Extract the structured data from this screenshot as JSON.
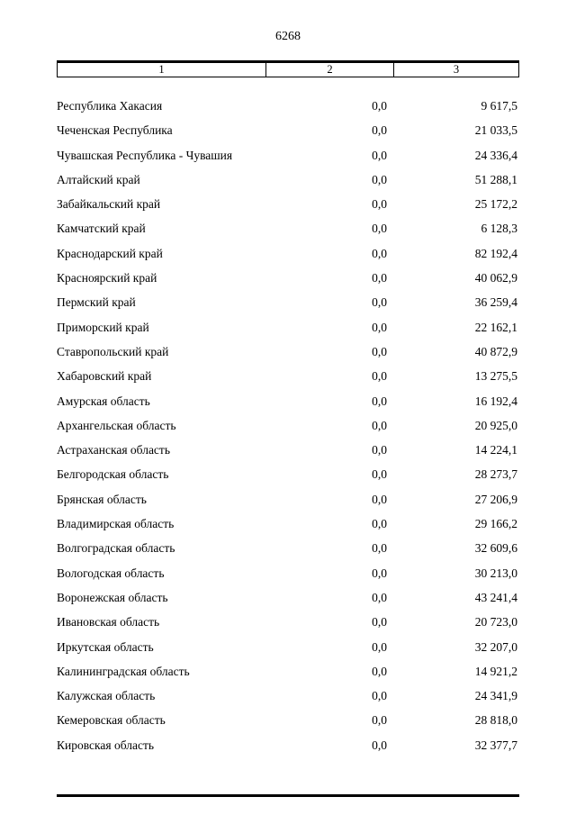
{
  "page": {
    "number": "6268"
  },
  "table": {
    "headers": [
      "1",
      "2",
      "3"
    ],
    "rows": [
      {
        "region": "Республика Хакасия",
        "col2": "0,0",
        "col3": "9 617,5"
      },
      {
        "region": "Чеченская Республика",
        "col2": "0,0",
        "col3": "21 033,5"
      },
      {
        "region": "Чувашская Республика - Чувашия",
        "col2": "0,0",
        "col3": "24 336,4"
      },
      {
        "region": "Алтайский край",
        "col2": "0,0",
        "col3": "51 288,1"
      },
      {
        "region": "Забайкальский край",
        "col2": "0,0",
        "col3": "25 172,2"
      },
      {
        "region": "Камчатский край",
        "col2": "0,0",
        "col3": "6 128,3"
      },
      {
        "region": "Краснодарский край",
        "col2": "0,0",
        "col3": "82 192,4"
      },
      {
        "region": "Красноярский край",
        "col2": "0,0",
        "col3": "40 062,9"
      },
      {
        "region": "Пермский край",
        "col2": "0,0",
        "col3": "36 259,4"
      },
      {
        "region": "Приморский край",
        "col2": "0,0",
        "col3": "22 162,1"
      },
      {
        "region": "Ставропольский край",
        "col2": "0,0",
        "col3": "40 872,9"
      },
      {
        "region": "Хабаровский край",
        "col2": "0,0",
        "col3": "13 275,5"
      },
      {
        "region": "Амурская область",
        "col2": "0,0",
        "col3": "16 192,4"
      },
      {
        "region": "Архангельская область",
        "col2": "0,0",
        "col3": "20 925,0"
      },
      {
        "region": "Астраханская область",
        "col2": "0,0",
        "col3": "14 224,1"
      },
      {
        "region": "Белгородская область",
        "col2": "0,0",
        "col3": "28 273,7"
      },
      {
        "region": "Брянская область",
        "col2": "0,0",
        "col3": "27 206,9"
      },
      {
        "region": "Владимирская область",
        "col2": "0,0",
        "col3": "29 166,2"
      },
      {
        "region": "Волгоградская область",
        "col2": "0,0",
        "col3": "32 609,6"
      },
      {
        "region": "Вологодская область",
        "col2": "0,0",
        "col3": "30 213,0"
      },
      {
        "region": "Воронежская область",
        "col2": "0,0",
        "col3": "43 241,4"
      },
      {
        "region": "Ивановская область",
        "col2": "0,0",
        "col3": "20 723,0"
      },
      {
        "region": "Иркутская область",
        "col2": "0,0",
        "col3": "32 207,0"
      },
      {
        "region": "Калининградская область",
        "col2": "0,0",
        "col3": "14 921,2"
      },
      {
        "region": "Калужская область",
        "col2": "0,0",
        "col3": "24 341,9"
      },
      {
        "region": "Кемеровская область",
        "col2": "0,0",
        "col3": "28 818,0"
      },
      {
        "region": "Кировская область",
        "col2": "0,0",
        "col3": "32 377,7"
      }
    ]
  }
}
